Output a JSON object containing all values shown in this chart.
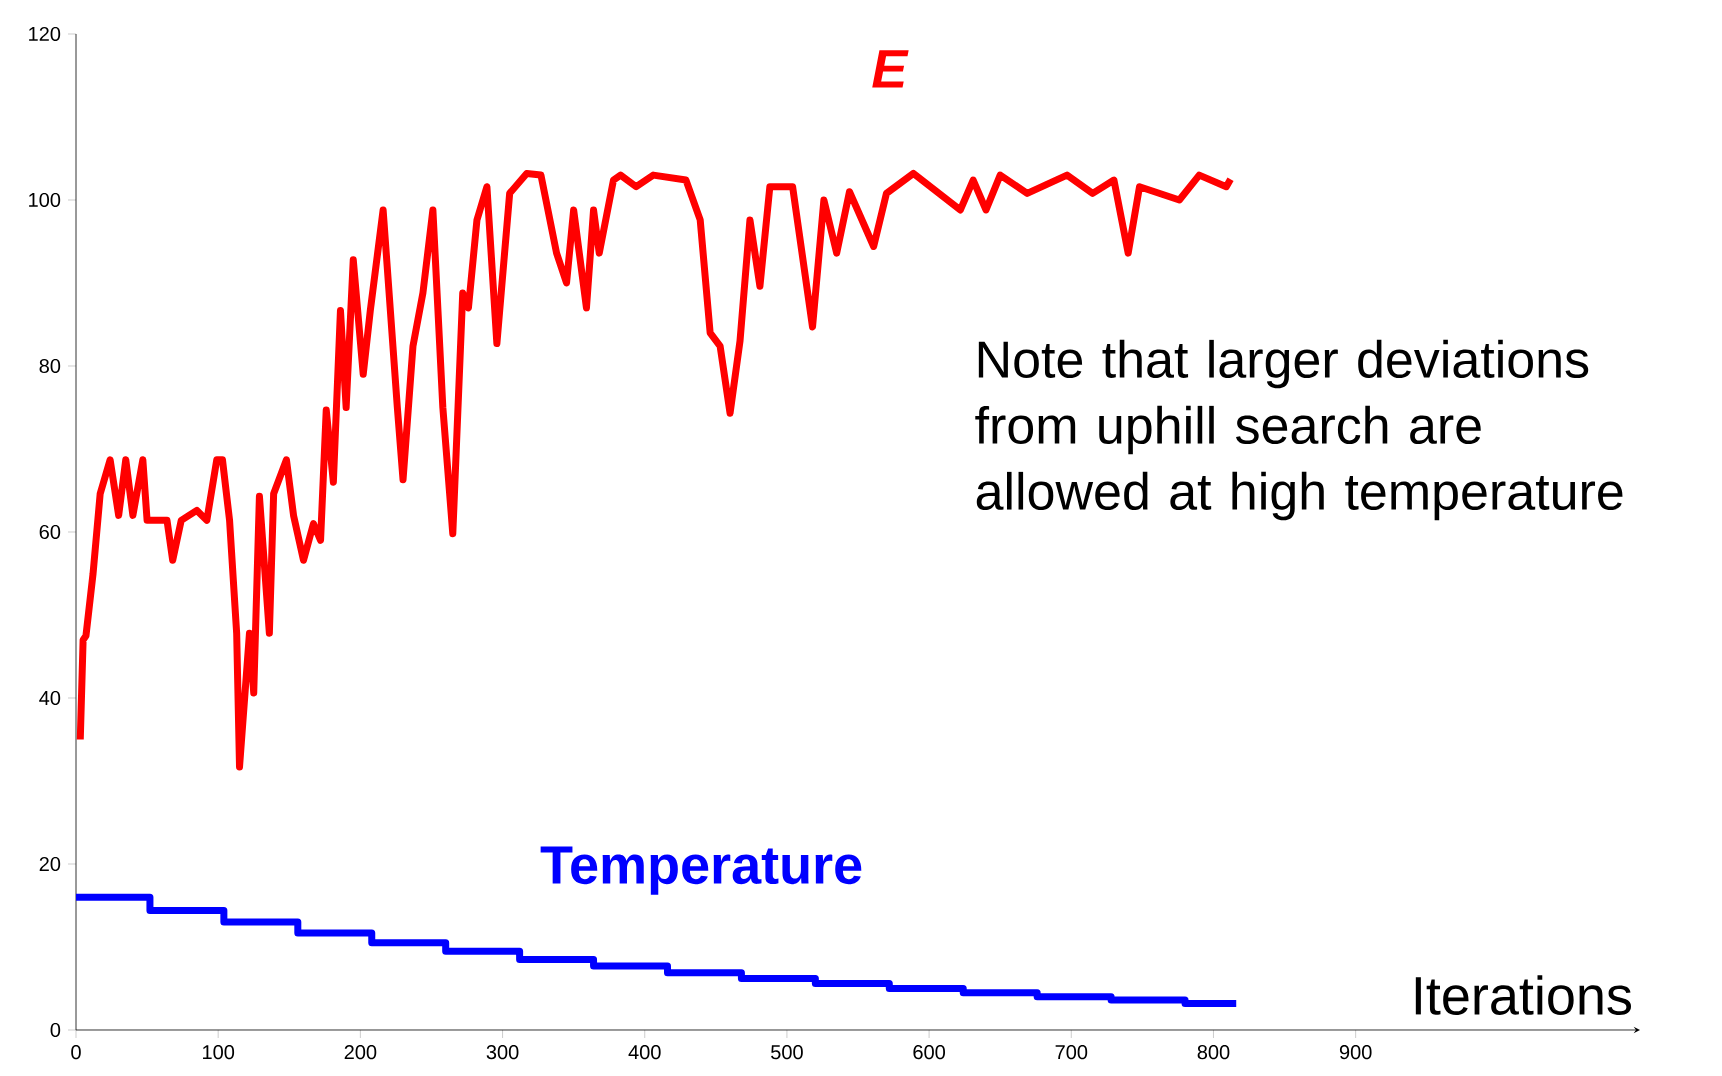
{
  "chart_data": {
    "type": "line",
    "xlabel": "Iterations",
    "xlim": [
      0,
      1100
    ],
    "ylim": [
      0,
      120
    ],
    "xticks": [
      0,
      100,
      200,
      300,
      400,
      500,
      600,
      700,
      800,
      900
    ],
    "yticks": [
      0,
      20,
      40,
      60,
      80,
      100,
      120
    ],
    "grid": false,
    "annotations": [
      "Note that larger deviations from uphill search are allowed at high temperature"
    ],
    "series": [
      {
        "name": "E",
        "color": "#ff0000",
        "x": [
          3,
          5,
          7,
          12,
          17,
          24,
          30,
          35,
          40,
          47,
          50,
          64,
          68,
          74,
          85,
          92,
          99,
          103,
          108,
          113,
          115,
          122,
          125,
          129,
          136,
          139,
          148,
          153,
          160,
          167,
          172,
          176,
          181,
          186,
          190,
          195,
          202,
          207,
          216,
          226,
          230,
          237,
          244,
          251,
          258,
          265,
          272,
          276,
          282,
          289,
          296,
          305,
          317,
          327,
          338,
          345,
          350,
          359,
          364,
          368,
          378,
          383,
          394,
          406,
          429,
          439,
          446,
          453,
          460,
          467,
          474,
          481,
          488,
          504,
          518,
          526,
          535,
          544,
          561,
          570,
          589,
          622,
          631,
          640,
          650,
          669,
          697,
          715,
          730,
          740,
          748,
          776,
          790,
          809,
          812
        ],
        "values": [
          35,
          47,
          47.5,
          55,
          64.6,
          68.7,
          62,
          68.7,
          62,
          68.7,
          61.4,
          61.4,
          56.6,
          61.4,
          62.6,
          61.4,
          68.7,
          68.7,
          61.4,
          47.8,
          31.7,
          47.8,
          40.6,
          64.3,
          47.8,
          64.6,
          68.7,
          62,
          56.6,
          61,
          59,
          74.7,
          66,
          86.7,
          75,
          92.8,
          79,
          86.7,
          98.8,
          75,
          66.3,
          82.4,
          88.8,
          98.8,
          75,
          59.8,
          88.8,
          87,
          97.6,
          101.6,
          82.7,
          100.8,
          103.2,
          103,
          93.6,
          90,
          98.8,
          87,
          98.8,
          93.6,
          102.4,
          103,
          101.6,
          103,
          102.4,
          97.6,
          84,
          82.4,
          74.3,
          83,
          97.6,
          89.6,
          101.6,
          101.6,
          84.7,
          100,
          93.6,
          101,
          94.4,
          100.8,
          103.2,
          98.8,
          102.4,
          98.8,
          103,
          100.8,
          103,
          100.8,
          102.4,
          93.6,
          101.6,
          100,
          103,
          101.6,
          102.5
        ]
      },
      {
        "name": "Temperature",
        "type": "step",
        "color": "#0000ff",
        "x": [
          0,
          52,
          104,
          156,
          208,
          260,
          312,
          364,
          416,
          468,
          520,
          572,
          624,
          676,
          728,
          780,
          816
        ],
        "values": [
          16,
          14.4,
          13,
          11.7,
          10.5,
          9.5,
          8.5,
          7.7,
          6.9,
          6.2,
          5.6,
          5.0,
          4.5,
          4.0,
          3.6,
          3.2,
          3.2
        ]
      }
    ]
  }
}
